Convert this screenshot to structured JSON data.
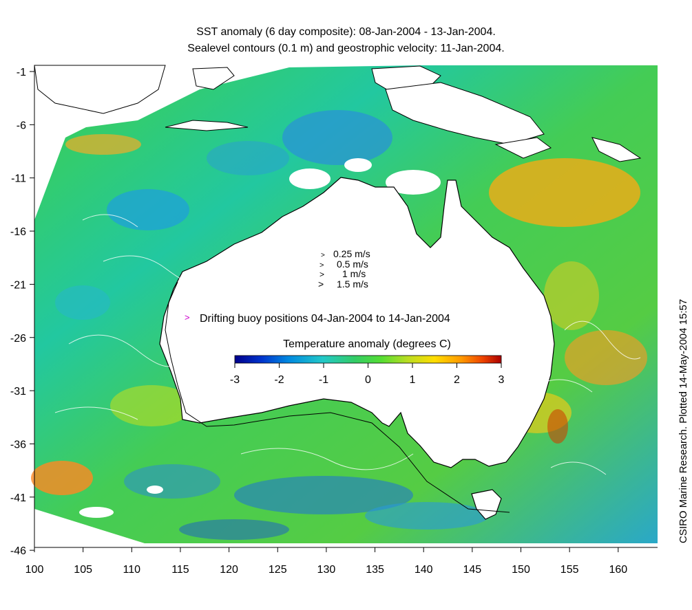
{
  "title_line1": "SST anomaly (6 day composite): 08-Jan-2004 - 13-Jan-2004.",
  "title_line2": "Sealevel contours (0.1 m) and geostrophic velocity: 11-Jan-2004.",
  "side_credit": "CSIRO Marine Research. Plotted 14-May-2004 15:57",
  "axes": {
    "x_ticks": [
      "100",
      "105",
      "110",
      "115",
      "120",
      "125",
      "130",
      "135",
      "140",
      "145",
      "150",
      "155",
      "160"
    ],
    "y_ticks": [
      "-1",
      "-6",
      "-11",
      "-16",
      "-21",
      "-26",
      "-31",
      "-36",
      "-41",
      "-46"
    ],
    "lon_range": [
      100,
      164
    ],
    "lat_range": [
      -46,
      0
    ]
  },
  "velocity_legend": [
    "0.25 m/s",
    "0.5 m/s",
    "1 m/s",
    "1.5 m/s"
  ],
  "buoy_legend": "Drifting buoy positions 04-Jan-2004 to 14-Jan-2004",
  "colorbar": {
    "title": "Temperature anomaly (degrees C)",
    "ticks": [
      "-3",
      "-2",
      "-1",
      "0",
      "1",
      "2",
      "3"
    ],
    "range": [
      -3,
      3
    ],
    "colors": [
      "#00008b",
      "#0033cc",
      "#0088e0",
      "#22c8c8",
      "#33cc66",
      "#44dd33",
      "#aadd22",
      "#ffdd00",
      "#ff9900",
      "#ee4400",
      "#aa0000"
    ]
  },
  "palette": {
    "land": "#ffffff",
    "coast": "#000000",
    "buoy": "#cc00cc",
    "contour": "#ffffff"
  }
}
